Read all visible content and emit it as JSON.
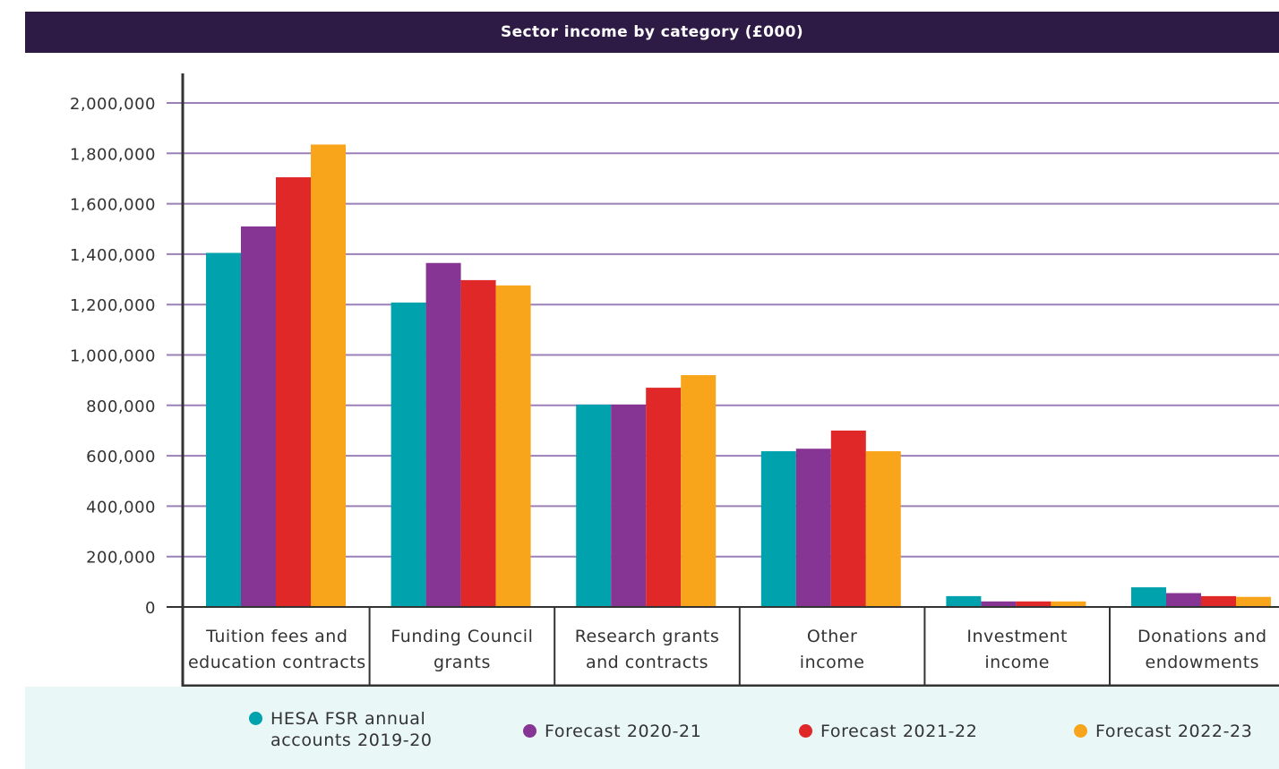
{
  "chart_data": {
    "type": "bar",
    "title": "Sector income by category (£000)",
    "categories": [
      "Tuition fees and\neducation contracts",
      "Funding Council\ngrants",
      "Research grants\nand contracts",
      "Other\nincome",
      "Investment\nincome",
      "Donations and\nendowments"
    ],
    "series": [
      {
        "name": "HESA FSR annual\naccounts 2019-20",
        "color": "#00a3ad",
        "values": [
          1405000,
          1208000,
          803000,
          618000,
          43000,
          78000
        ]
      },
      {
        "name": "Forecast 2020-21",
        "color": "#863594",
        "values": [
          1510000,
          1365000,
          803000,
          628000,
          22000,
          55000
        ]
      },
      {
        "name": "Forecast 2021-22",
        "color": "#e02828",
        "values": [
          1705000,
          1297000,
          870000,
          700000,
          22000,
          43000
        ]
      },
      {
        "name": "Forecast 2022-23",
        "color": "#f9a51b",
        "values": [
          1835000,
          1276000,
          920000,
          618000,
          22000,
          40000
        ]
      }
    ],
    "yticks": [
      "0",
      "200,000",
      "400,000",
      "600,000",
      "800,000",
      "1,000,000",
      "1,200,000",
      "1,400,000",
      "1,600,000",
      "1,800,000",
      "2,000,000"
    ],
    "ylim": [
      0,
      2000000
    ],
    "grid": true,
    "gridline_color": "#9b80b8",
    "legend_position": "bottom"
  }
}
